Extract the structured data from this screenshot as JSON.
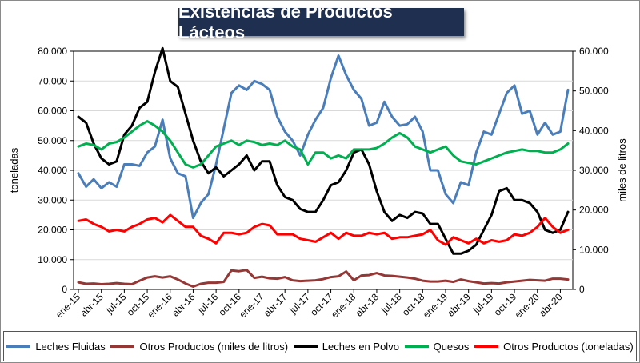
{
  "chart_data": {
    "type": "line",
    "title": "Existencias de Productos Lácteos",
    "ylabel": "toneladas",
    "y2label": "miles de litros",
    "ylim": [
      0,
      80000
    ],
    "y2lim": [
      0,
      60000
    ],
    "yticks": [
      "0",
      "10.000",
      "20.000",
      "30.000",
      "40.000",
      "50.000",
      "60.000",
      "70.000",
      "80.000"
    ],
    "y2ticks": [
      "0",
      "10.000",
      "20.000",
      "30.000",
      "40.000",
      "50.000",
      "60.000"
    ],
    "grid": "horizontal",
    "legend_position": "bottom",
    "x_tick_labels": [
      "ene-15",
      "abr-15",
      "jul-15",
      "oct-15",
      "ene-16",
      "abr-16",
      "jul-16",
      "oct-16",
      "ene-17",
      "abr-17",
      "jul-17",
      "oct-17",
      "ene-18",
      "abr-18",
      "jul-18",
      "oct-18",
      "ene-19",
      "abr-19",
      "jul-19",
      "oct-19",
      "ene-20",
      "abr-20"
    ],
    "x_start": "ene-15",
    "x_end": "jun-20",
    "series": [
      {
        "name": "Leches Fluidas",
        "color": "#4a7ebb",
        "axis": "left",
        "values": [
          39000,
          34500,
          37000,
          34000,
          36000,
          34500,
          42000,
          42000,
          41500,
          46000,
          48000,
          57000,
          44000,
          39000,
          38000,
          24000,
          29000,
          32000,
          42000,
          54000,
          66000,
          68500,
          67000,
          70000,
          69000,
          67000,
          58000,
          53000,
          50000,
          45000,
          52000,
          57000,
          61000,
          71000,
          78500,
          72000,
          67000,
          64000,
          55000,
          56000,
          63000,
          58000,
          55000,
          55500,
          58000,
          53000,
          40000,
          40000,
          32000,
          29000,
          36000,
          35000,
          46000,
          53000,
          52000,
          59000,
          66000,
          68500,
          59000,
          60000,
          52000,
          56000,
          52000,
          53000,
          67000
        ]
      },
      {
        "name": "Otros Productos (miles de litros)",
        "color": "#953735",
        "axis": "right",
        "values": [
          1800,
          1400,
          1500,
          1300,
          1400,
          1600,
          1400,
          1300,
          2200,
          3000,
          3300,
          3000,
          3300,
          2500,
          1500,
          700,
          1400,
          1700,
          1700,
          1900,
          4800,
          4600,
          4900,
          2900,
          3200,
          2800,
          2700,
          3100,
          2300,
          2100,
          2200,
          2300,
          2600,
          3100,
          3300,
          4500,
          2300,
          3500,
          3600,
          4100,
          3500,
          3400,
          3200,
          3000,
          2700,
          2200,
          2000,
          2000,
          2200,
          1900,
          2500,
          2100,
          1800,
          1500,
          1600,
          1500,
          1800,
          2000,
          2200,
          2400,
          2300,
          2200,
          2700,
          2700,
          2500
        ]
      },
      {
        "name": "Leches en Polvo",
        "color": "#000000",
        "axis": "left",
        "values": [
          58000,
          56000,
          49000,
          44000,
          42000,
          43000,
          52000,
          55000,
          61000,
          63000,
          73000,
          81000,
          70000,
          68000,
          59000,
          50000,
          43000,
          39000,
          41000,
          38000,
          40000,
          42000,
          45000,
          40000,
          43000,
          43000,
          35000,
          31000,
          30000,
          27000,
          26000,
          26000,
          30000,
          35000,
          36000,
          40000,
          46000,
          47000,
          42000,
          33000,
          26000,
          23000,
          25000,
          24000,
          26000,
          25500,
          22000,
          22000,
          17000,
          12000,
          12000,
          13000,
          15000,
          20000,
          25000,
          33000,
          34000,
          30000,
          30000,
          29000,
          26000,
          20000,
          19000,
          20000,
          26000
        ]
      },
      {
        "name": "Quesos",
        "color": "#00b050",
        "axis": "left",
        "values": [
          48000,
          49000,
          48500,
          47000,
          49000,
          49500,
          51000,
          53000,
          55000,
          56500,
          55000,
          53000,
          50000,
          46000,
          42000,
          41000,
          42000,
          45000,
          48000,
          49000,
          50000,
          48500,
          50000,
          49500,
          48500,
          49000,
          48500,
          50000,
          48000,
          47000,
          42000,
          46000,
          46000,
          44000,
          45000,
          44000,
          47000,
          47000,
          47000,
          47500,
          49000,
          51000,
          52500,
          51000,
          48000,
          47000,
          46000,
          47000,
          48000,
          45000,
          43000,
          42500,
          42000,
          43000,
          44000,
          45000,
          46000,
          46500,
          47000,
          46500,
          46500,
          46000,
          46000,
          47000,
          49000
        ]
      },
      {
        "name": "Otros Productos (toneladas)",
        "color": "#ff0000",
        "axis": "left",
        "values": [
          23000,
          23500,
          22000,
          21000,
          19500,
          20000,
          19500,
          21000,
          22000,
          23500,
          24000,
          22500,
          25000,
          23000,
          21000,
          21000,
          18000,
          17000,
          15500,
          19000,
          19000,
          18500,
          19000,
          21000,
          22000,
          21500,
          18500,
          18500,
          18500,
          17000,
          16500,
          16000,
          17500,
          19000,
          17000,
          19000,
          18000,
          18000,
          19000,
          18500,
          19000,
          17000,
          17500,
          17500,
          18000,
          18500,
          20000,
          16500,
          15000,
          17500,
          16500,
          15500,
          17000,
          15500,
          16500,
          16000,
          16500,
          18500,
          18000,
          19000,
          21000,
          24000,
          21000,
          19000,
          20000
        ]
      }
    ]
  }
}
